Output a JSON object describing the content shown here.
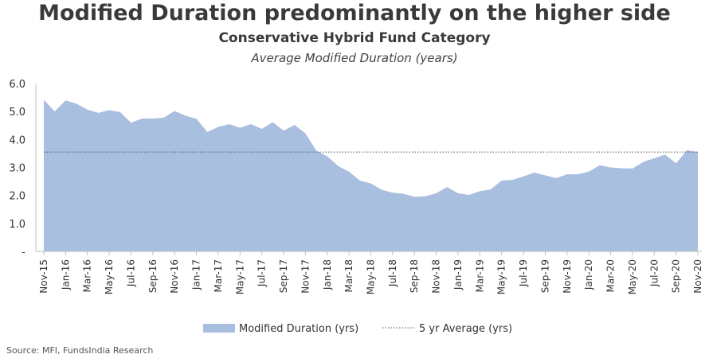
{
  "chart_data": {
    "type": "area",
    "title": "Modified Duration predominantly on the higher side",
    "subtitle": "Conservative Hybrid Fund Category",
    "subtitle2": "Average Modified Duration (years)",
    "ylim": [
      0,
      6
    ],
    "yticks": [
      "-",
      "1.0",
      "2.0",
      "3.0",
      "4.0",
      "5.0",
      "6.0"
    ],
    "x_tick_labels": [
      "Nov-15",
      "Jan-16",
      "Mar-16",
      "May-16",
      "Jul-16",
      "Sep-16",
      "Nov-16",
      "Jan-17",
      "Mar-17",
      "May-17",
      "Jul-17",
      "Sep-17",
      "Nov-17",
      "Jan-18",
      "Mar-18",
      "May-18",
      "Jul-18",
      "Sep-18",
      "Nov-18",
      "Jan-19",
      "Mar-19",
      "May-19",
      "Jul-19",
      "Sep-19",
      "Nov-19",
      "Jan-20",
      "Mar-20",
      "May-20",
      "Jul-20",
      "Sep-20",
      "Nov-20"
    ],
    "series": [
      {
        "name": "Modified Duration (yrs)",
        "color": "#a9bfdf",
        "values": [
          5.42,
          5.0,
          5.4,
          5.28,
          5.07,
          4.95,
          5.05,
          4.98,
          4.6,
          4.75,
          4.75,
          4.78,
          5.02,
          4.85,
          4.74,
          4.27,
          4.45,
          4.55,
          4.42,
          4.55,
          4.38,
          4.62,
          4.32,
          4.52,
          4.22,
          3.6,
          3.4,
          3.05,
          2.85,
          2.53,
          2.43,
          2.2,
          2.1,
          2.06,
          1.95,
          1.97,
          2.08,
          2.3,
          2.08,
          2.02,
          2.15,
          2.22,
          2.53,
          2.56,
          2.68,
          2.82,
          2.72,
          2.62,
          2.76,
          2.76,
          2.85,
          3.08,
          3.0,
          2.97,
          2.96,
          3.2,
          3.33,
          3.46,
          3.15,
          3.62,
          3.55
        ]
      }
    ],
    "reference_line": {
      "name": "5 yr Average (yrs)",
      "value": 3.55,
      "color": "#555555"
    },
    "legend_placement": "bottom"
  },
  "source": "Source: MFI, FundsIndia Research"
}
